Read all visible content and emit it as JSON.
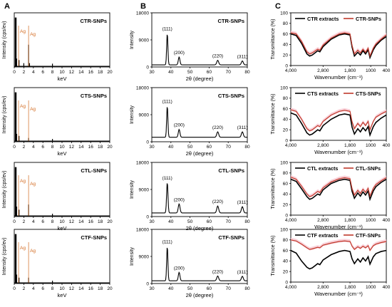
{
  "panel_letters": [
    "A",
    "B",
    "C"
  ],
  "colors": {
    "frame": "#000000",
    "spectrum": "#000000",
    "ag_line": "#d2691e",
    "snp_line": "#c0392b",
    "extract_line": "#000000",
    "pink_band": "#f7c6cf"
  },
  "chart_data": [
    {
      "panel": "A",
      "type": "line",
      "title": "",
      "sample": "CTR-SNPs",
      "ylabel": "Intensity (cps/ev)",
      "xlabel": "keV",
      "xlim": [
        0,
        20
      ],
      "xticks": [
        0,
        2,
        4,
        6,
        8,
        10,
        12,
        14,
        16,
        18,
        20
      ],
      "annotations": [
        "Ag",
        "Ag"
      ],
      "peaks": [
        {
          "x": 0.3,
          "y": 0.95
        },
        {
          "x": 0.5,
          "y": 0.15
        },
        {
          "x": 1.0,
          "y": 0.12
        },
        {
          "x": 2.0,
          "y": 0.06
        },
        {
          "x": 3.0,
          "y": 0.42
        },
        {
          "x": 3.2,
          "y": 0.06
        },
        {
          "x": 8.0,
          "y": 0.05
        }
      ]
    },
    {
      "panel": "A",
      "type": "line",
      "title": "",
      "sample": "CTS-SNPs",
      "ylabel": "Intensity (cps/ev)",
      "xlabel": "keV",
      "xlim": [
        0,
        20
      ],
      "xticks": [
        0,
        2,
        4,
        6,
        8,
        10,
        12,
        14,
        16,
        18,
        20
      ],
      "annotations": [
        "Ag",
        "Ag"
      ],
      "peaks": [
        {
          "x": 0.3,
          "y": 0.95
        },
        {
          "x": 0.5,
          "y": 0.14
        },
        {
          "x": 1.0,
          "y": 0.1
        },
        {
          "x": 3.0,
          "y": 0.06
        },
        {
          "x": 8.0,
          "y": 0.04
        }
      ]
    },
    {
      "panel": "A",
      "type": "line",
      "title": "",
      "sample": "CTL-SNPs",
      "ylabel": "Intensity (cps/ev)",
      "xlabel": "keV",
      "xlim": [
        0,
        20
      ],
      "xticks": [
        0,
        2,
        4,
        6,
        8,
        10,
        12,
        14,
        16,
        18,
        20
      ],
      "annotations": [
        "Ag",
        "Ag"
      ],
      "peaks": [
        {
          "x": 0.3,
          "y": 0.95
        },
        {
          "x": 0.5,
          "y": 0.18
        },
        {
          "x": 1.0,
          "y": 0.12
        },
        {
          "x": 3.0,
          "y": 0.22
        },
        {
          "x": 8.0,
          "y": 0.04
        }
      ]
    },
    {
      "panel": "A",
      "type": "line",
      "title": "",
      "sample": "CTF-SNPs",
      "ylabel": "Intensity (cps/ev)",
      "xlabel": "keV",
      "xlim": [
        0,
        20
      ],
      "xticks": [
        0,
        2,
        4,
        6,
        8,
        10,
        12,
        14,
        16,
        18,
        20
      ],
      "annotations": [
        "Ag",
        "Ag"
      ],
      "peaks": [
        {
          "x": 0.3,
          "y": 0.95
        },
        {
          "x": 0.5,
          "y": 0.16
        },
        {
          "x": 1.0,
          "y": 0.1
        },
        {
          "x": 3.0,
          "y": 0.1
        },
        {
          "x": 8.0,
          "y": 0.04
        }
      ]
    },
    {
      "panel": "B",
      "type": "line",
      "title": "",
      "sample": "CTR-SNPs",
      "ylabel": "Intensity",
      "xlabel": "2θ (degree)",
      "xlim": [
        30,
        80
      ],
      "xticks": [
        30,
        40,
        50,
        60,
        70,
        80
      ],
      "ylim": [
        0,
        18000
      ],
      "yticks": [
        0,
        9000,
        18000
      ],
      "annotations": [
        "(111)",
        "(200)",
        "(220)",
        "(311)"
      ],
      "baseline": 700,
      "peaks": [
        {
          "x": 38.1,
          "y": 10500,
          "w": 0.45
        },
        {
          "x": 44.3,
          "y": 2600,
          "w": 0.6
        },
        {
          "x": 64.5,
          "y": 1500,
          "w": 0.7
        },
        {
          "x": 77.4,
          "y": 1300,
          "w": 0.7
        }
      ]
    },
    {
      "panel": "B",
      "type": "line",
      "title": "",
      "sample": "CTS-SNPs",
      "ylabel": "Intensity",
      "xlabel": "2θ (degree)",
      "xlim": [
        30,
        80
      ],
      "xticks": [
        30,
        40,
        50,
        60,
        70,
        80
      ],
      "ylim": [
        0,
        18000
      ],
      "yticks": [
        0,
        9000,
        18000
      ],
      "annotations": [
        "(111)",
        "(200)",
        "(220)",
        "(311)"
      ],
      "baseline": 1500,
      "peaks": [
        {
          "x": 38.1,
          "y": 10500,
          "w": 0.45
        },
        {
          "x": 44.3,
          "y": 2600,
          "w": 0.6
        },
        {
          "x": 64.5,
          "y": 1800,
          "w": 0.7
        },
        {
          "x": 77.4,
          "y": 1800,
          "w": 0.7
        }
      ]
    },
    {
      "panel": "B",
      "type": "line",
      "title": "",
      "sample": "CTL-SNPs",
      "ylabel": "Intensity",
      "xlabel": "2θ (degree)",
      "xlim": [
        30,
        80
      ],
      "xticks": [
        30,
        40,
        50,
        60,
        70,
        80
      ],
      "ylim": [
        0,
        18000
      ],
      "yticks": [
        0,
        9000,
        18000
      ],
      "annotations": [
        "(111)",
        "(200)",
        "(220)",
        "(311)"
      ],
      "baseline": 1200,
      "peaks": [
        {
          "x": 38.1,
          "y": 10200,
          "w": 0.5
        },
        {
          "x": 44.3,
          "y": 3000,
          "w": 0.65
        },
        {
          "x": 64.5,
          "y": 2300,
          "w": 0.7
        },
        {
          "x": 77.4,
          "y": 2100,
          "w": 0.7
        }
      ]
    },
    {
      "panel": "B",
      "type": "line",
      "title": "",
      "sample": "CTF-SNPs",
      "ylabel": "Intensity",
      "xlabel": "2θ (degree)",
      "xlim": [
        30,
        80
      ],
      "xticks": [
        30,
        40,
        50,
        60,
        70,
        80
      ],
      "ylim": [
        0,
        18000
      ],
      "yticks": [
        0,
        9000,
        18000
      ],
      "annotations": [
        "(111)",
        "(200)",
        "(220)",
        "(311)"
      ],
      "baseline": 900,
      "peaks": [
        {
          "x": 38.1,
          "y": 11500,
          "w": 0.45
        },
        {
          "x": 44.3,
          "y": 2800,
          "w": 0.6
        },
        {
          "x": 64.5,
          "y": 1600,
          "w": 0.7
        },
        {
          "x": 77.4,
          "y": 1500,
          "w": 0.7
        }
      ]
    },
    {
      "panel": "C",
      "type": "line",
      "title": "",
      "ylabel": "Transmittance (%)",
      "xlabel": "Wavenumber (cm⁻¹)",
      "xlim": [
        4000,
        400
      ],
      "xticks": [
        "4,000",
        "2,800",
        "1,800",
        "1000",
        "400"
      ],
      "ylim": [
        0,
        100
      ],
      "yticks": [
        0,
        20,
        40,
        60,
        80,
        100
      ],
      "legend_position": "top",
      "series": [
        {
          "name": "CTR extracts",
          "x": [
            4000,
            3800,
            3600,
            3400,
            3300,
            3200,
            3000,
            2920,
            2800,
            2500,
            2200,
            2000,
            1800,
            1720,
            1630,
            1500,
            1400,
            1300,
            1200,
            1100,
            1030,
            900,
            800,
            600,
            400
          ],
          "y": [
            60,
            57,
            42,
            22,
            18,
            20,
            28,
            26,
            36,
            50,
            58,
            60,
            58,
            35,
            18,
            25,
            20,
            28,
            22,
            30,
            15,
            30,
            38,
            48,
            55
          ]
        },
        {
          "name": "CTR-SNPs",
          "x": [
            4000,
            3800,
            3600,
            3400,
            3300,
            3200,
            3000,
            2920,
            2800,
            2500,
            2200,
            2000,
            1800,
            1720,
            1630,
            1500,
            1400,
            1300,
            1200,
            1100,
            1030,
            900,
            800,
            600,
            400
          ],
          "y": [
            62,
            60,
            46,
            26,
            22,
            24,
            31,
            29,
            39,
            52,
            60,
            62,
            60,
            38,
            22,
            29,
            24,
            31,
            25,
            33,
            18,
            33,
            41,
            50,
            58
          ]
        }
      ]
    },
    {
      "panel": "C",
      "type": "line",
      "title": "",
      "ylabel": "Transmittance (%)",
      "xlabel": "Wavenumber (cm⁻¹)",
      "xlim": [
        4000,
        400
      ],
      "xticks": [
        "4,000",
        "2,800",
        "1,800",
        "1000",
        "400"
      ],
      "ylim": [
        0,
        100
      ],
      "yticks": [
        0,
        20,
        40,
        60,
        80,
        100
      ],
      "legend_position": "top",
      "series": [
        {
          "name": "CTS extracts",
          "x": [
            4000,
            3800,
            3600,
            3400,
            3300,
            3200,
            3000,
            2920,
            2800,
            2500,
            2200,
            2000,
            1800,
            1720,
            1630,
            1500,
            1400,
            1300,
            1200,
            1100,
            1030,
            900,
            800,
            600,
            400
          ],
          "y": [
            52,
            48,
            32,
            14,
            10,
            12,
            20,
            18,
            28,
            40,
            48,
            50,
            48,
            25,
            12,
            22,
            16,
            24,
            18,
            26,
            10,
            26,
            34,
            42,
            48
          ]
        },
        {
          "name": "CTS-SNPs",
          "x": [
            4000,
            3800,
            3600,
            3400,
            3300,
            3200,
            3000,
            2920,
            2800,
            2500,
            2200,
            2000,
            1800,
            1720,
            1630,
            1500,
            1400,
            1300,
            1200,
            1100,
            1030,
            900,
            800,
            600,
            400
          ],
          "y": [
            58,
            55,
            40,
            22,
            18,
            20,
            28,
            26,
            36,
            48,
            55,
            57,
            55,
            35,
            22,
            32,
            26,
            34,
            28,
            36,
            20,
            36,
            44,
            50,
            55
          ]
        }
      ]
    },
    {
      "panel": "C",
      "type": "line",
      "title": "",
      "ylabel": "Transmittance (%)",
      "xlabel": "Wavenumber (cm⁻¹)",
      "xlim": [
        4000,
        400
      ],
      "xticks": [
        "4,000",
        "2,800",
        "1,800",
        "1000",
        "400"
      ],
      "ylim": [
        0,
        100
      ],
      "yticks": [
        0,
        20,
        40,
        60,
        80,
        100
      ],
      "legend_position": "top",
      "series": [
        {
          "name": "CTL extracts",
          "x": [
            4000,
            3800,
            3600,
            3400,
            3300,
            3200,
            3000,
            2920,
            2800,
            2500,
            2200,
            2000,
            1800,
            1720,
            1630,
            1500,
            1400,
            1300,
            1200,
            1100,
            1030,
            900,
            800,
            600,
            400
          ],
          "y": [
            68,
            64,
            50,
            35,
            30,
            32,
            40,
            38,
            48,
            60,
            66,
            68,
            66,
            45,
            32,
            42,
            36,
            44,
            38,
            46,
            30,
            46,
            54,
            62,
            68
          ]
        },
        {
          "name": "CTL-SNPs",
          "x": [
            4000,
            3800,
            3600,
            3400,
            3300,
            3200,
            3000,
            2920,
            2800,
            2500,
            2200,
            2000,
            1800,
            1720,
            1630,
            1500,
            1400,
            1300,
            1200,
            1100,
            1030,
            900,
            800,
            600,
            400
          ],
          "y": [
            72,
            68,
            55,
            40,
            35,
            37,
            45,
            43,
            52,
            63,
            69,
            71,
            69,
            50,
            38,
            47,
            41,
            49,
            43,
            51,
            36,
            51,
            58,
            65,
            71
          ]
        }
      ]
    },
    {
      "panel": "C",
      "type": "line",
      "title": "",
      "ylabel": "Transmittance (%)",
      "xlabel": "Wavenumber (cm⁻¹)",
      "xlim": [
        4000,
        400
      ],
      "xticks": [
        "4,000",
        "2,800",
        "1,800",
        "1000",
        "400"
      ],
      "ylim": [
        0,
        100
      ],
      "yticks": [
        0,
        20,
        40,
        60,
        80,
        100
      ],
      "legend_position": "top",
      "series": [
        {
          "name": "CTF extracts",
          "x": [
            4000,
            3800,
            3600,
            3400,
            3300,
            3200,
            3000,
            2920,
            2800,
            2500,
            2200,
            2000,
            1800,
            1720,
            1630,
            1500,
            1400,
            1300,
            1200,
            1100,
            1030,
            900,
            800,
            600,
            400
          ],
          "y": [
            60,
            55,
            40,
            28,
            25,
            27,
            35,
            33,
            42,
            52,
            58,
            60,
            58,
            44,
            35,
            44,
            38,
            46,
            40,
            48,
            34,
            48,
            54,
            58,
            60
          ]
        },
        {
          "name": "CTF-SNPs",
          "x": [
            4000,
            3800,
            3600,
            3400,
            3300,
            3200,
            3000,
            2920,
            2800,
            2500,
            2200,
            2000,
            1800,
            1720,
            1630,
            1500,
            1400,
            1300,
            1200,
            1100,
            1030,
            900,
            800,
            600,
            400
          ],
          "y": [
            80,
            78,
            72,
            65,
            62,
            63,
            66,
            65,
            70,
            74,
            77,
            78,
            77,
            68,
            62,
            67,
            64,
            68,
            65,
            69,
            60,
            69,
            72,
            75,
            77
          ]
        }
      ]
    }
  ]
}
